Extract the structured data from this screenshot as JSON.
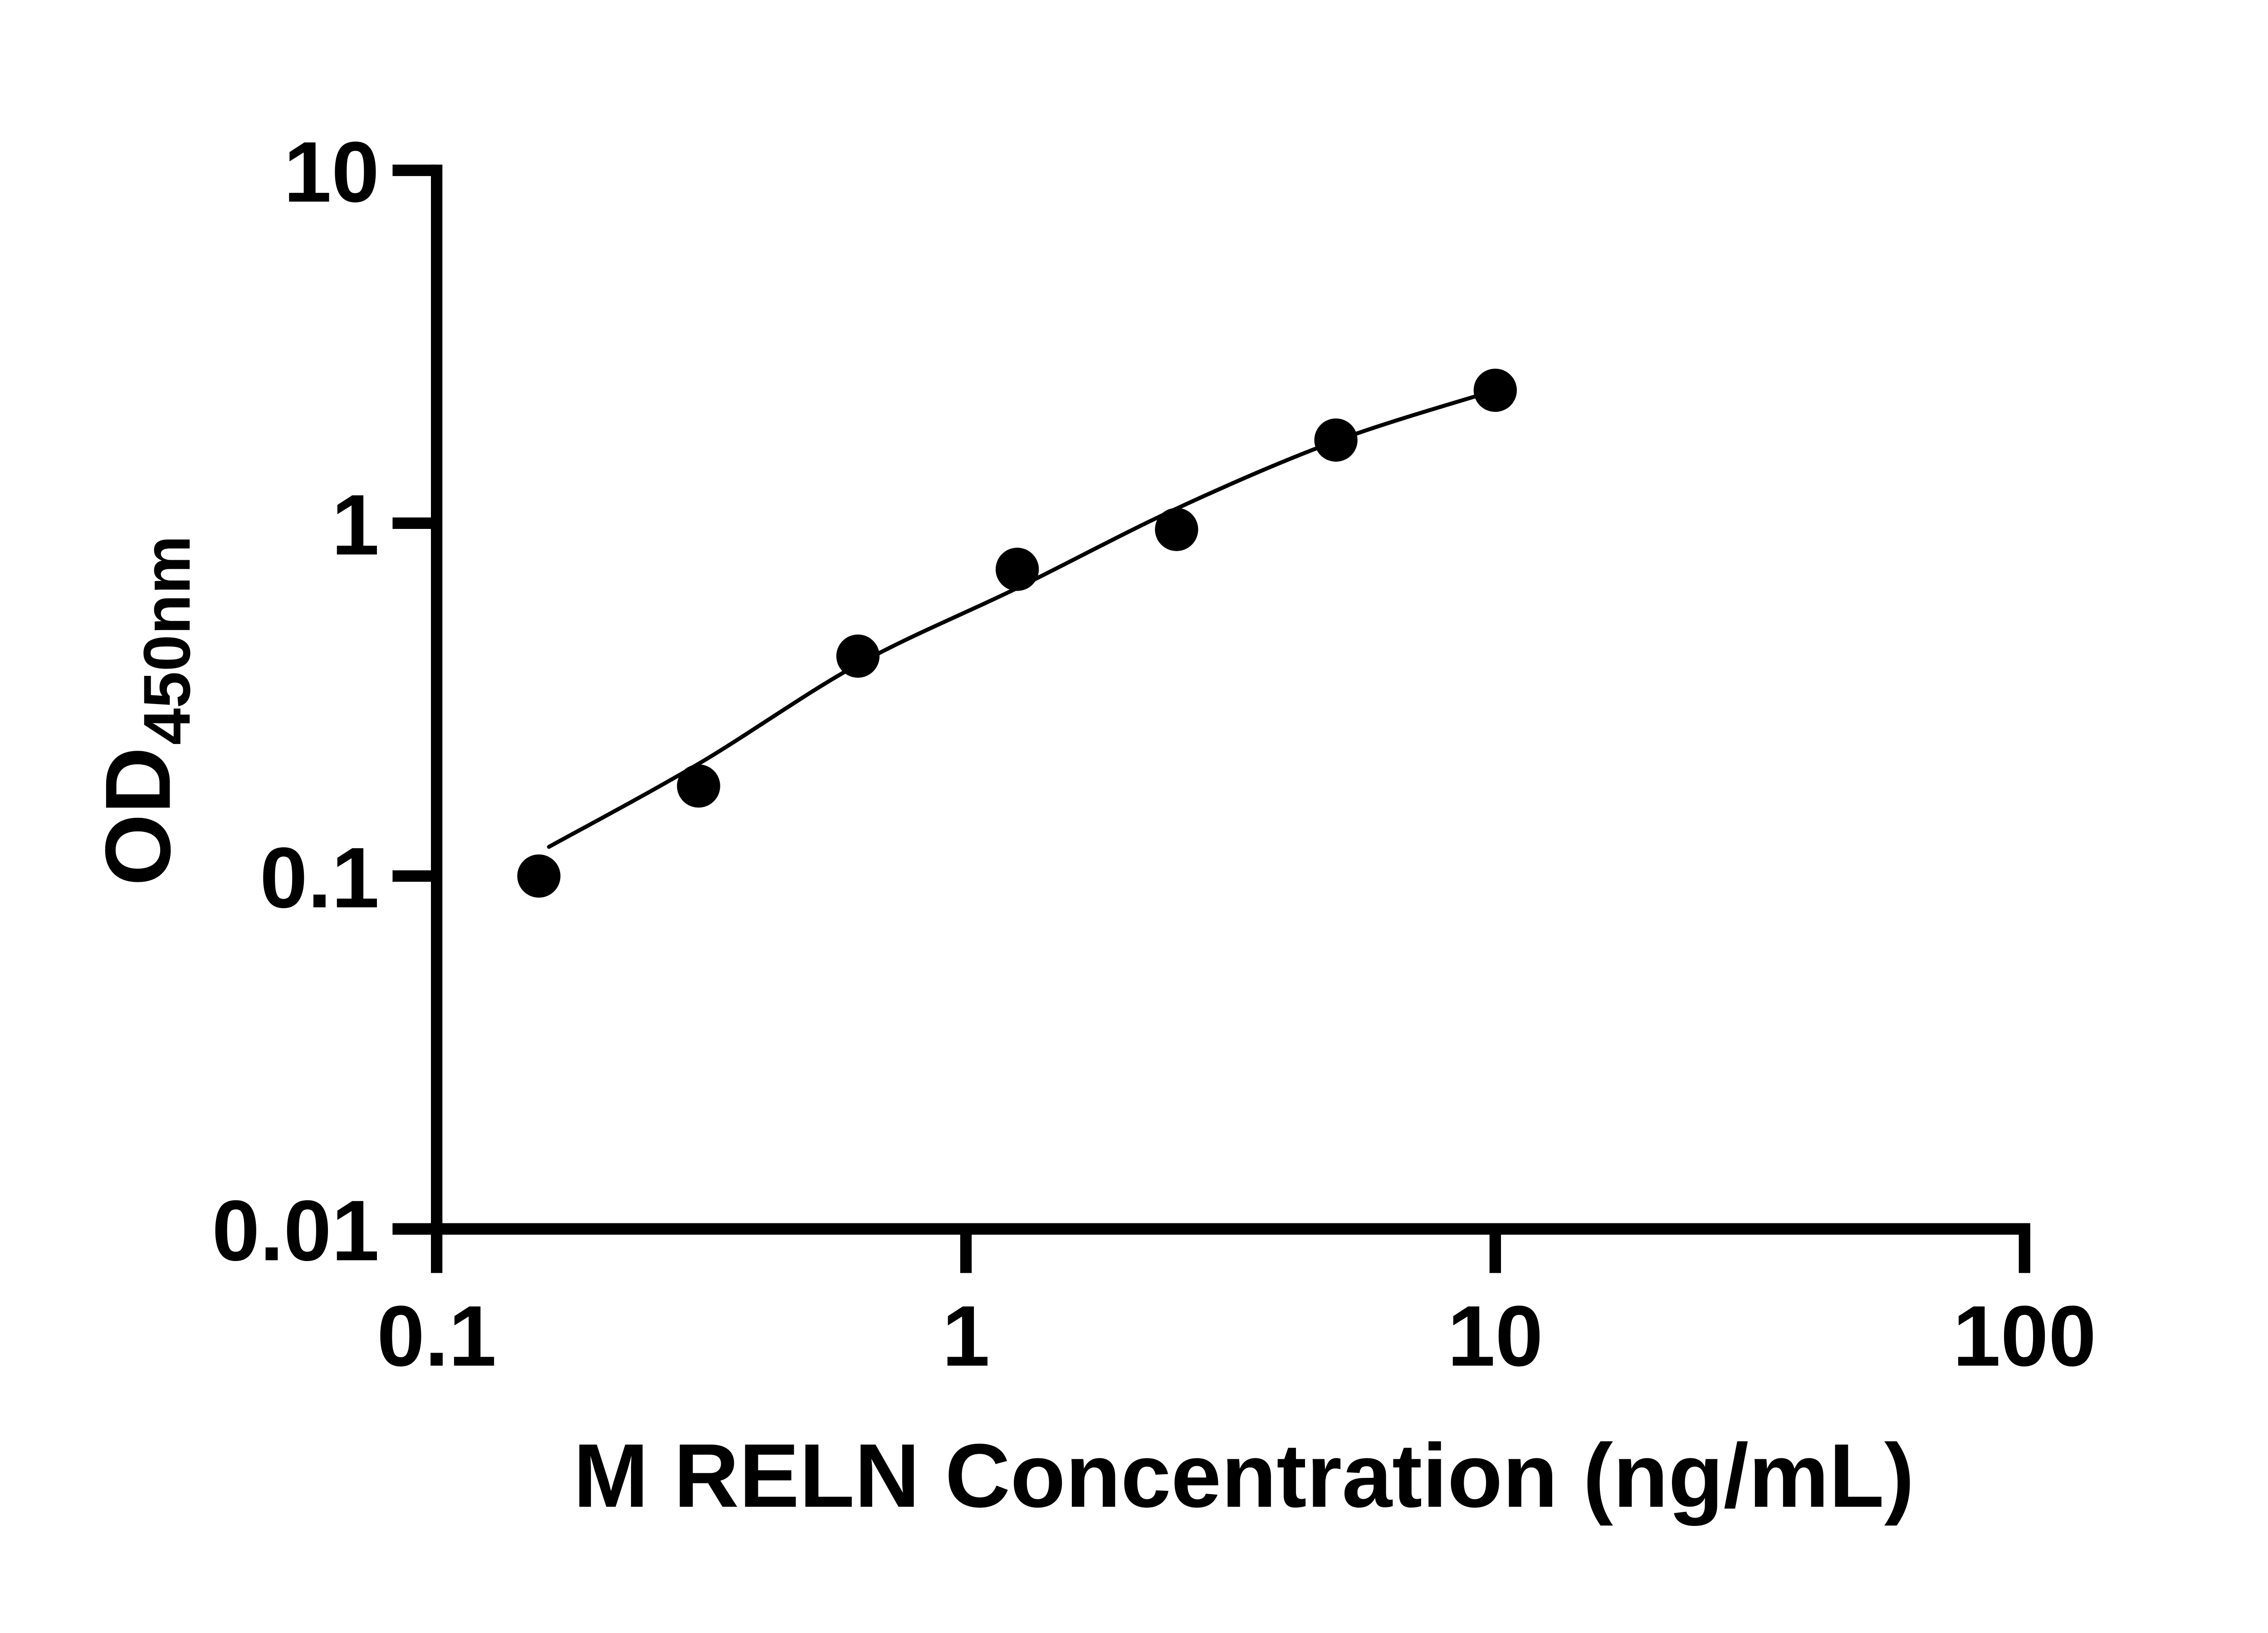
{
  "page": {
    "background": "#ffffff",
    "ink_color": "#000000"
  },
  "chart_data": {
    "type": "scatter",
    "title": "",
    "xlabel": "M RELN Concentration (ng/mL)",
    "ylabel": {
      "main": "OD",
      "sub": "450nm"
    },
    "x_scale": "log10",
    "y_scale": "log10",
    "xlim": [
      0.1,
      100
    ],
    "ylim": [
      0.01,
      10
    ],
    "grid": false,
    "legend": null,
    "x_ticks": [
      {
        "value": 0.1,
        "label": "0.1"
      },
      {
        "value": 1,
        "label": "1"
      },
      {
        "value": 10,
        "label": "10"
      },
      {
        "value": 100,
        "label": "100"
      }
    ],
    "y_ticks": [
      {
        "value": 10,
        "label": "10"
      },
      {
        "value": 1,
        "label": "1"
      },
      {
        "value": 0.1,
        "label": "0.1"
      },
      {
        "value": 0.01,
        "label": "0.01"
      }
    ],
    "series": [
      {
        "name": "standard-points",
        "type": "scatter",
        "marker": "filled-circle",
        "color": "#000000",
        "points": [
          {
            "x": 0.156,
            "y": 0.1
          },
          {
            "x": 0.3125,
            "y": 0.18
          },
          {
            "x": 0.625,
            "y": 0.42
          },
          {
            "x": 1.25,
            "y": 0.74
          },
          {
            "x": 2.5,
            "y": 0.96
          },
          {
            "x": 5,
            "y": 1.72
          },
          {
            "x": 10,
            "y": 2.38
          }
        ]
      },
      {
        "name": "fit-curve",
        "type": "line",
        "color": "#000000",
        "points": [
          {
            "x": 0.163,
            "y": 0.121
          },
          {
            "x": 0.3125,
            "y": 0.208
          },
          {
            "x": 0.625,
            "y": 0.398
          },
          {
            "x": 1.25,
            "y": 0.655
          },
          {
            "x": 2.5,
            "y": 1.1
          },
          {
            "x": 5,
            "y": 1.71
          },
          {
            "x": 10,
            "y": 2.38
          }
        ]
      }
    ]
  }
}
